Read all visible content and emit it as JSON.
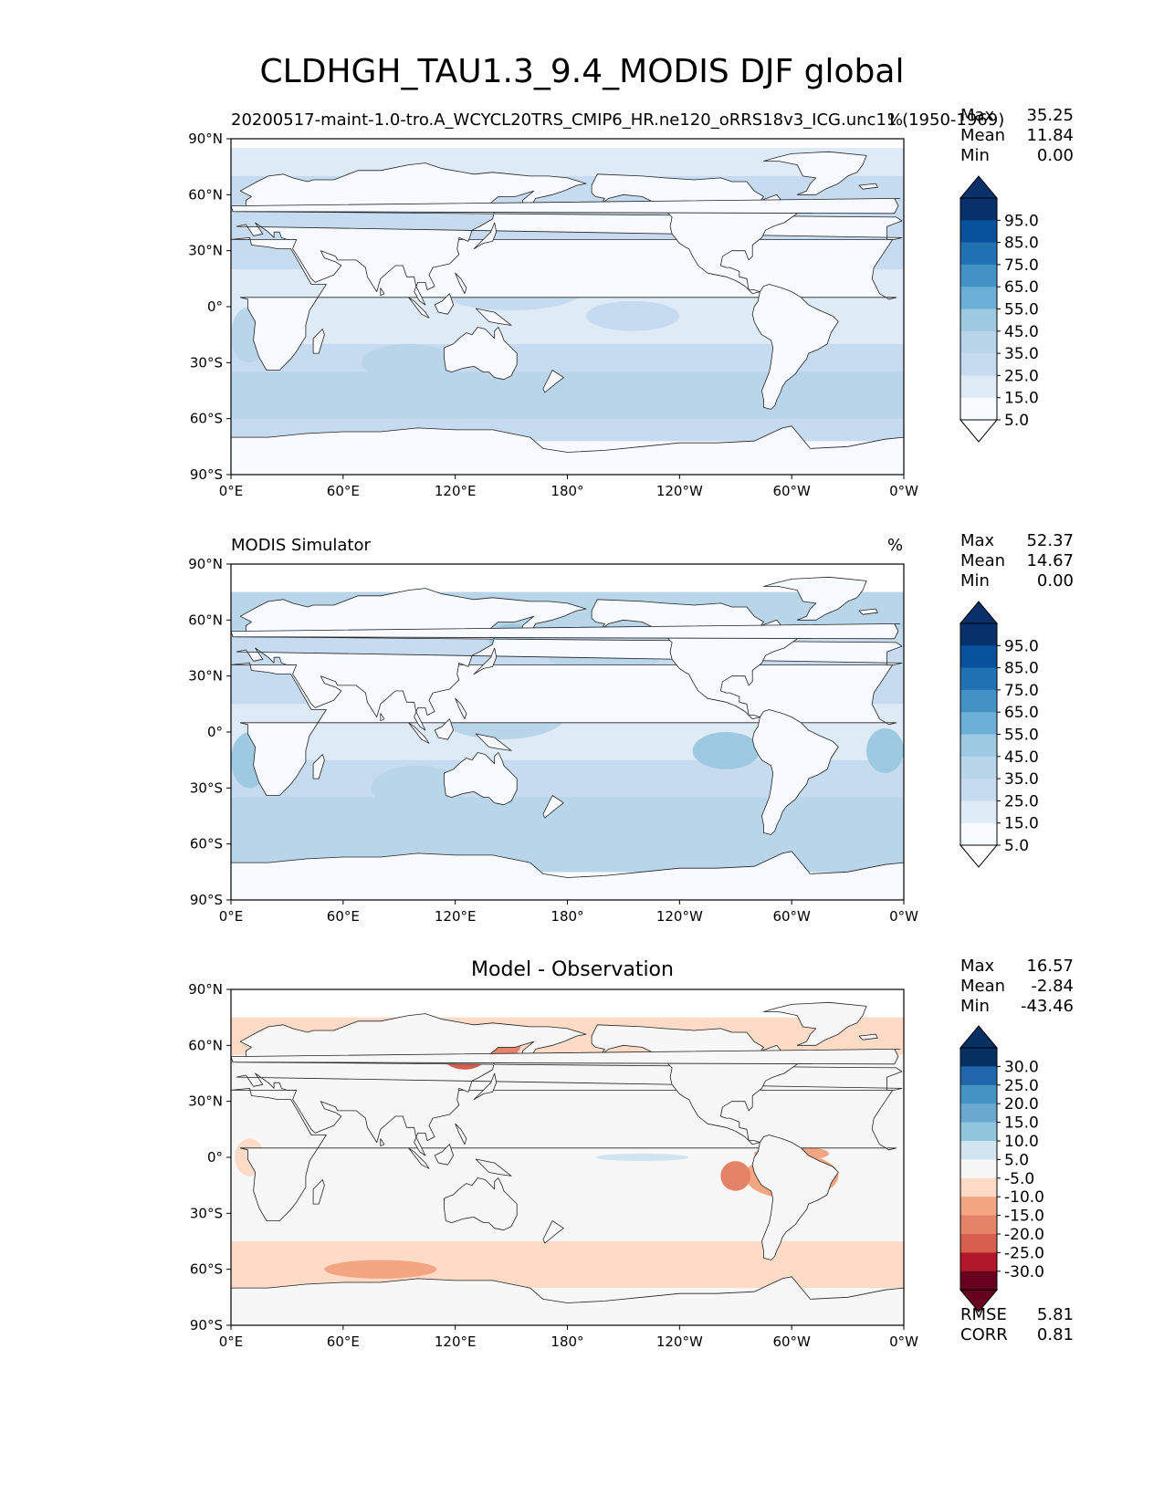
{
  "title": "CLDHGH_TAU1.3_9.4_MODIS DJF global",
  "colors": {
    "blues": [
      "#f7fbff",
      "#deebf7",
      "#c6dbef",
      "#b8d5ea",
      "#9ecae1",
      "#6baed6",
      "#4292c6",
      "#2171b5",
      "#08519c",
      "#08306b"
    ],
    "diff": [
      "#67001f",
      "#b2182b",
      "#d6604d",
      "#e58368",
      "#f4a582",
      "#fddbc7",
      "#f7f7f7",
      "#d1e5f0",
      "#92c5de",
      "#6aa8d0",
      "#4393c3",
      "#2166ac",
      "#053061"
    ],
    "land": "#ffffff",
    "coast": "#222222"
  },
  "panels": [
    {
      "id": "model",
      "subtitle_left": "20200517-maint-1.0-tro.A_WCYCL20TRS_CMIP6_HR.ne120_oRRS18v3_ICG.unc11 (1950-1969)",
      "units": "%",
      "center_title": "",
      "stats": [
        {
          "label": "Max",
          "value": "35.25"
        },
        {
          "label": "Mean",
          "value": "11.84"
        },
        {
          "label": "Min",
          "value": "0.00"
        }
      ],
      "bottom_stats": []
    },
    {
      "id": "obs",
      "subtitle_left": "MODIS Simulator",
      "units": "%",
      "center_title": "",
      "stats": [
        {
          "label": "Max",
          "value": "52.37"
        },
        {
          "label": "Mean",
          "value": "14.67"
        },
        {
          "label": "Min",
          "value": "0.00"
        }
      ],
      "bottom_stats": []
    },
    {
      "id": "diff",
      "subtitle_left": "",
      "units": "",
      "center_title": "Model - Observation",
      "stats": [
        {
          "label": "Max",
          "value": "16.57"
        },
        {
          "label": "Mean",
          "value": "-2.84"
        },
        {
          "label": "Min",
          "value": "-43.46"
        }
      ],
      "bottom_stats": [
        {
          "label": "RMSE",
          "value": "5.81"
        },
        {
          "label": "CORR",
          "value": "0.81"
        }
      ]
    }
  ],
  "axes": {
    "y_ticks": [
      "90°N",
      "60°N",
      "30°N",
      "0°",
      "30°S",
      "60°S",
      "90°S"
    ],
    "x_ticks": [
      "0°E",
      "60°E",
      "120°E",
      "180°",
      "120°W",
      "60°W",
      "0°W"
    ]
  },
  "colorbars": {
    "blues_ticks": [
      "95.0",
      "85.0",
      "75.0",
      "65.0",
      "55.0",
      "45.0",
      "35.0",
      "25.0",
      "15.0",
      "5.0"
    ],
    "diff_ticks": [
      "30.0",
      "25.0",
      "20.0",
      "15.0",
      "10.0",
      "5.0",
      "-5.0",
      "-10.0",
      "-15.0",
      "-20.0",
      "-25.0",
      "-30.0"
    ]
  },
  "chart_data": [
    {
      "type": "heatmap",
      "title": "CLDHGH_TAU1.3_9.4_MODIS DJF global",
      "subtitle": "20200517-maint-1.0-tro.A_WCYCL20TRS_CMIP6_HR.ne120_oRRS18v3_ICG.unc11 (1950-1969)",
      "units": "%",
      "xlim": [
        0,
        360
      ],
      "ylim": [
        -90,
        90
      ],
      "levels": [
        5,
        15,
        25,
        35,
        45,
        55,
        65,
        75,
        85,
        95
      ],
      "stats": {
        "max": 35.25,
        "mean": 11.84,
        "min": 0.0
      }
    },
    {
      "type": "heatmap",
      "subtitle": "MODIS Simulator",
      "units": "%",
      "xlim": [
        0,
        360
      ],
      "ylim": [
        -90,
        90
      ],
      "levels": [
        5,
        15,
        25,
        35,
        45,
        55,
        65,
        75,
        85,
        95
      ],
      "stats": {
        "max": 52.37,
        "mean": 14.67,
        "min": 0.0
      }
    },
    {
      "type": "heatmap",
      "title": "Model - Observation",
      "xlim": [
        0,
        360
      ],
      "ylim": [
        -90,
        90
      ],
      "levels": [
        -30,
        -25,
        -20,
        -15,
        -10,
        -5,
        5,
        10,
        15,
        20,
        25,
        30
      ],
      "stats": {
        "max": 16.57,
        "mean": -2.84,
        "min": -43.46,
        "rmse": 5.81,
        "corr": 0.81
      }
    }
  ]
}
